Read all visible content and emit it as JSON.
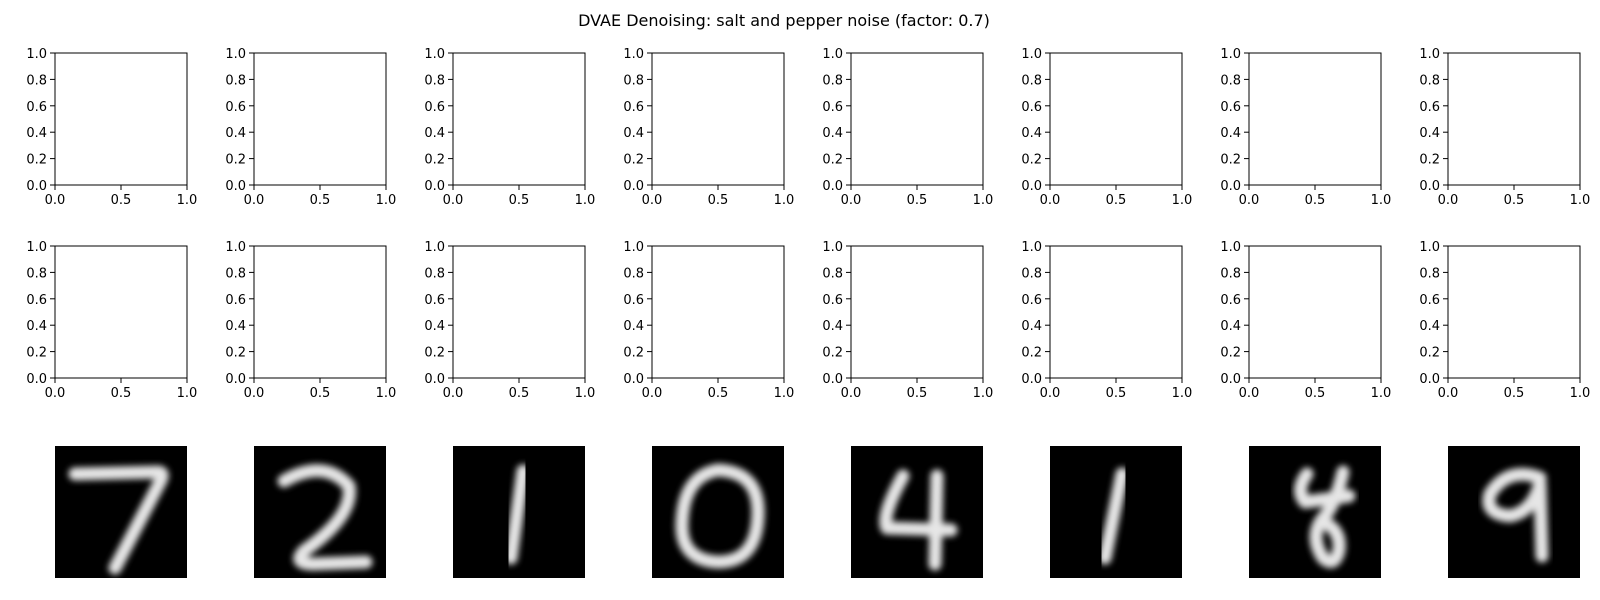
{
  "figure": {
    "title": "DVAE Denoising: salt and pepper noise (factor: 0.7)"
  },
  "colors": {
    "axes": "#000000",
    "background": "#ffffff",
    "image_background": "#000000",
    "digit_stroke": "#ffffff"
  },
  "chart_data": [
    {
      "type": "scatter",
      "panel": "row-1 empty axes (x8)",
      "xlim": [
        0.0,
        1.0
      ],
      "ylim": [
        0.0,
        1.0
      ],
      "xticks": [
        "0.0",
        "0.5",
        "1.0"
      ],
      "yticks": [
        "0.0",
        "0.2",
        "0.4",
        "0.6",
        "0.8",
        "1.0"
      ],
      "grid": false,
      "count": 8
    },
    {
      "type": "scatter",
      "panel": "row-2 empty axes (x8)",
      "xlim": [
        0.0,
        1.0
      ],
      "ylim": [
        0.0,
        1.0
      ],
      "xticks": [
        "0.0",
        "0.5",
        "1.0"
      ],
      "yticks": [
        "0.0",
        "0.2",
        "0.4",
        "0.6",
        "0.8",
        "1.0"
      ],
      "grid": false,
      "count": 8
    },
    {
      "type": "heatmap",
      "panel": "row-3 reconstructed digits",
      "colormap": "gray",
      "digits": [
        "7",
        "2",
        "1",
        "0",
        "4",
        "1",
        "4",
        "9"
      ]
    }
  ]
}
